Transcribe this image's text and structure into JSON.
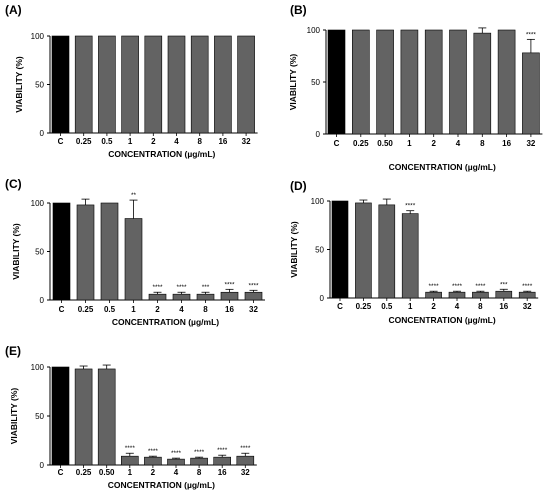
{
  "colors": {
    "control": "#000000",
    "treated": "#636363",
    "axis": "#000000",
    "background": "#ffffff"
  },
  "chart_data": [
    {
      "type": "bar",
      "panel_label": "(A)",
      "xlabel": "CONCENTRATION (µg/mL)",
      "ylabel": "VIABILITY (%)",
      "ylim": [
        0,
        100
      ],
      "yticks": [
        0,
        50,
        100
      ],
      "categories": [
        "C",
        "0.25",
        "0.5",
        "1",
        "2",
        "4",
        "8",
        "16",
        "32"
      ],
      "values": [
        100,
        100,
        100,
        100,
        100,
        100,
        100,
        100,
        100
      ],
      "errors": [
        0,
        0,
        0,
        0,
        0,
        0,
        0,
        0,
        0
      ],
      "significance": [
        "",
        "",
        "",
        "",
        "",
        "",
        "",
        "",
        ""
      ]
    },
    {
      "type": "bar",
      "panel_label": "(B)",
      "xlabel": "CONCENTRATION (µg/mL)",
      "ylabel": "VIABILITY (%)",
      "ylim": [
        0,
        100
      ],
      "yticks": [
        0,
        50,
        100
      ],
      "categories": [
        "C",
        "0.25",
        "0.50",
        "1",
        "2",
        "4",
        "8",
        "16",
        "32"
      ],
      "values": [
        100,
        100,
        100,
        100,
        100,
        100,
        97,
        100,
        78
      ],
      "errors": [
        0,
        0,
        0,
        0,
        0,
        0,
        5,
        0,
        13
      ],
      "significance": [
        "",
        "",
        "",
        "",
        "",
        "",
        "",
        "",
        "****"
      ]
    },
    {
      "type": "bar",
      "panel_label": "(C)",
      "xlabel": "CONCENTRATION (µg/mL)",
      "ylabel": "VIABILITY (%)",
      "ylim": [
        0,
        100
      ],
      "yticks": [
        0,
        50,
        100
      ],
      "categories": [
        "C",
        "0.25",
        "0.5",
        "1",
        "2",
        "4",
        "8",
        "16",
        "32"
      ],
      "values": [
        100,
        98,
        100,
        84,
        6,
        6,
        6,
        8,
        8
      ],
      "errors": [
        0,
        6,
        0,
        19,
        2,
        2,
        2,
        3,
        2
      ],
      "significance": [
        "",
        "",
        "",
        "**",
        "****",
        "****",
        "***",
        "****",
        "****"
      ]
    },
    {
      "type": "bar",
      "panel_label": "(D)",
      "xlabel": "CONCENTRATION (µg/mL)",
      "ylabel": "VIABILITY (%)",
      "ylim": [
        0,
        100
      ],
      "yticks": [
        0,
        50,
        100
      ],
      "categories": [
        "C",
        "0.25",
        "0.5",
        "1",
        "2",
        "4",
        "8",
        "16",
        "32"
      ],
      "values": [
        100,
        98,
        96,
        87,
        6,
        6,
        6,
        7,
        6
      ],
      "errors": [
        0,
        3,
        6,
        3,
        1,
        1,
        1,
        2,
        1
      ],
      "significance": [
        "",
        "",
        "",
        "****",
        "****",
        "****",
        "****",
        "***",
        "****"
      ]
    },
    {
      "type": "bar",
      "panel_label": "(E)",
      "xlabel": "CONCENTRATION (µg/mL)",
      "ylabel": "VIABILITY (%)",
      "ylim": [
        0,
        100
      ],
      "yticks": [
        0,
        50,
        100
      ],
      "categories": [
        "C",
        "0.25",
        "0.50",
        "1",
        "2",
        "4",
        "8",
        "16",
        "32"
      ],
      "values": [
        100,
        98,
        98,
        9,
        8,
        6,
        7,
        8,
        9
      ],
      "errors": [
        0,
        3,
        4,
        3,
        1,
        1,
        1,
        2,
        3
      ],
      "significance": [
        "",
        "",
        "",
        "****",
        "****",
        "****",
        "****",
        "****",
        "****"
      ]
    }
  ]
}
